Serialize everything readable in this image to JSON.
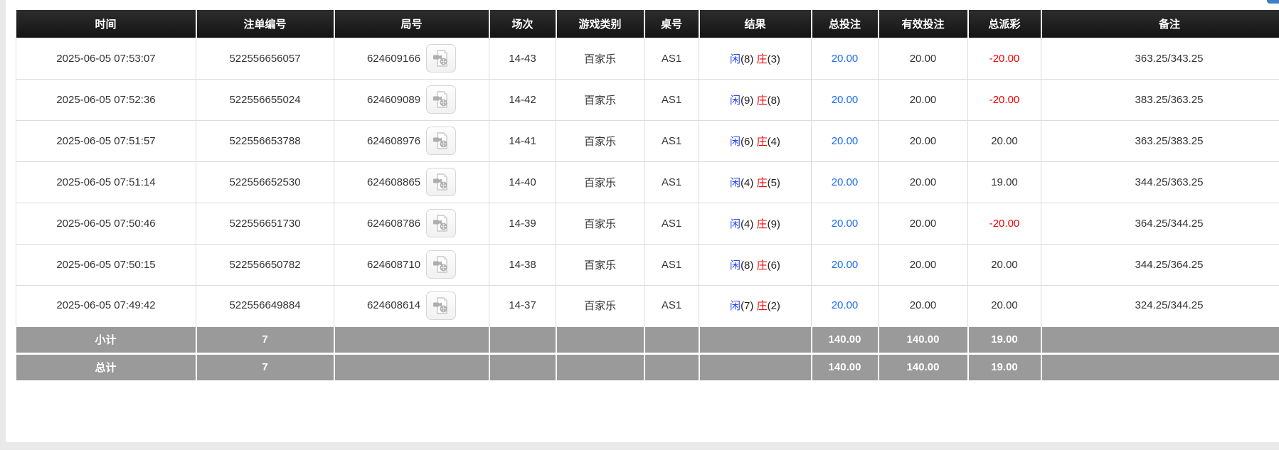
{
  "colors": {
    "header_bg": "#1c1c1c",
    "summary_bg": "#9a9a9a",
    "player_blue": "#2946ef",
    "banker_red": "#f20000",
    "negative_red": "#f20000",
    "bet_link_blue": "#1a6df2",
    "corner_button_blue": "#3e7fc1"
  },
  "table": {
    "headers": [
      "时间",
      "注单编号",
      "局号",
      "场次",
      "游戏类别",
      "桌号",
      "结果",
      "总投注",
      "有效投注",
      "总派彩",
      "备注"
    ],
    "rows": [
      {
        "time": "2025-06-05 07:53:07",
        "bet_id": "522556656057",
        "round_id": "624609166",
        "session": "14-43",
        "game_type": "百家乐",
        "table_no": "AS1",
        "result": {
          "player_label": "闲",
          "player_score": "(8)",
          "banker_label": "庄",
          "banker_score": "(3)"
        },
        "total_bet": "20.00",
        "valid_bet": "20.00",
        "payout": "-20.00",
        "payout_negative": true,
        "remark": "363.25/343.25"
      },
      {
        "time": "2025-06-05 07:52:36",
        "bet_id": "522556655024",
        "round_id": "624609089",
        "session": "14-42",
        "game_type": "百家乐",
        "table_no": "AS1",
        "result": {
          "player_label": "闲",
          "player_score": "(9)",
          "banker_label": "庄",
          "banker_score": "(8)"
        },
        "total_bet": "20.00",
        "valid_bet": "20.00",
        "payout": "-20.00",
        "payout_negative": true,
        "remark": "383.25/363.25"
      },
      {
        "time": "2025-06-05 07:51:57",
        "bet_id": "522556653788",
        "round_id": "624608976",
        "session": "14-41",
        "game_type": "百家乐",
        "table_no": "AS1",
        "result": {
          "player_label": "闲",
          "player_score": "(6)",
          "banker_label": "庄",
          "banker_score": "(4)"
        },
        "total_bet": "20.00",
        "valid_bet": "20.00",
        "payout": "20.00",
        "payout_negative": false,
        "remark": "363.25/383.25"
      },
      {
        "time": "2025-06-05 07:51:14",
        "bet_id": "522556652530",
        "round_id": "624608865",
        "session": "14-40",
        "game_type": "百家乐",
        "table_no": "AS1",
        "result": {
          "player_label": "闲",
          "player_score": "(4)",
          "banker_label": "庄",
          "banker_score": "(5)"
        },
        "total_bet": "20.00",
        "valid_bet": "20.00",
        "payout": "19.00",
        "payout_negative": false,
        "remark": "344.25/363.25"
      },
      {
        "time": "2025-06-05 07:50:46",
        "bet_id": "522556651730",
        "round_id": "624608786",
        "session": "14-39",
        "game_type": "百家乐",
        "table_no": "AS1",
        "result": {
          "player_label": "闲",
          "player_score": "(4)",
          "banker_label": "庄",
          "banker_score": "(9)"
        },
        "total_bet": "20.00",
        "valid_bet": "20.00",
        "payout": "-20.00",
        "payout_negative": true,
        "remark": "364.25/344.25"
      },
      {
        "time": "2025-06-05 07:50:15",
        "bet_id": "522556650782",
        "round_id": "624608710",
        "session": "14-38",
        "game_type": "百家乐",
        "table_no": "AS1",
        "result": {
          "player_label": "闲",
          "player_score": "(8)",
          "banker_label": "庄",
          "banker_score": "(6)"
        },
        "total_bet": "20.00",
        "valid_bet": "20.00",
        "payout": "20.00",
        "payout_negative": false,
        "remark": "344.25/364.25"
      },
      {
        "time": "2025-06-05 07:49:42",
        "bet_id": "522556649884",
        "round_id": "624608614",
        "session": "14-37",
        "game_type": "百家乐",
        "table_no": "AS1",
        "result": {
          "player_label": "闲",
          "player_score": "(7)",
          "banker_label": "庄",
          "banker_score": "(2)"
        },
        "total_bet": "20.00",
        "valid_bet": "20.00",
        "payout": "20.00",
        "payout_negative": false,
        "remark": "324.25/344.25"
      }
    ],
    "subtotal": {
      "label": "小计",
      "count": "7",
      "total_bet": "140.00",
      "valid_bet": "140.00",
      "payout": "19.00",
      "remark": ""
    },
    "grand_total": {
      "label": "总计",
      "count": "7",
      "total_bet": "140.00",
      "valid_bet": "140.00",
      "payout": "19.00",
      "remark": ""
    }
  }
}
